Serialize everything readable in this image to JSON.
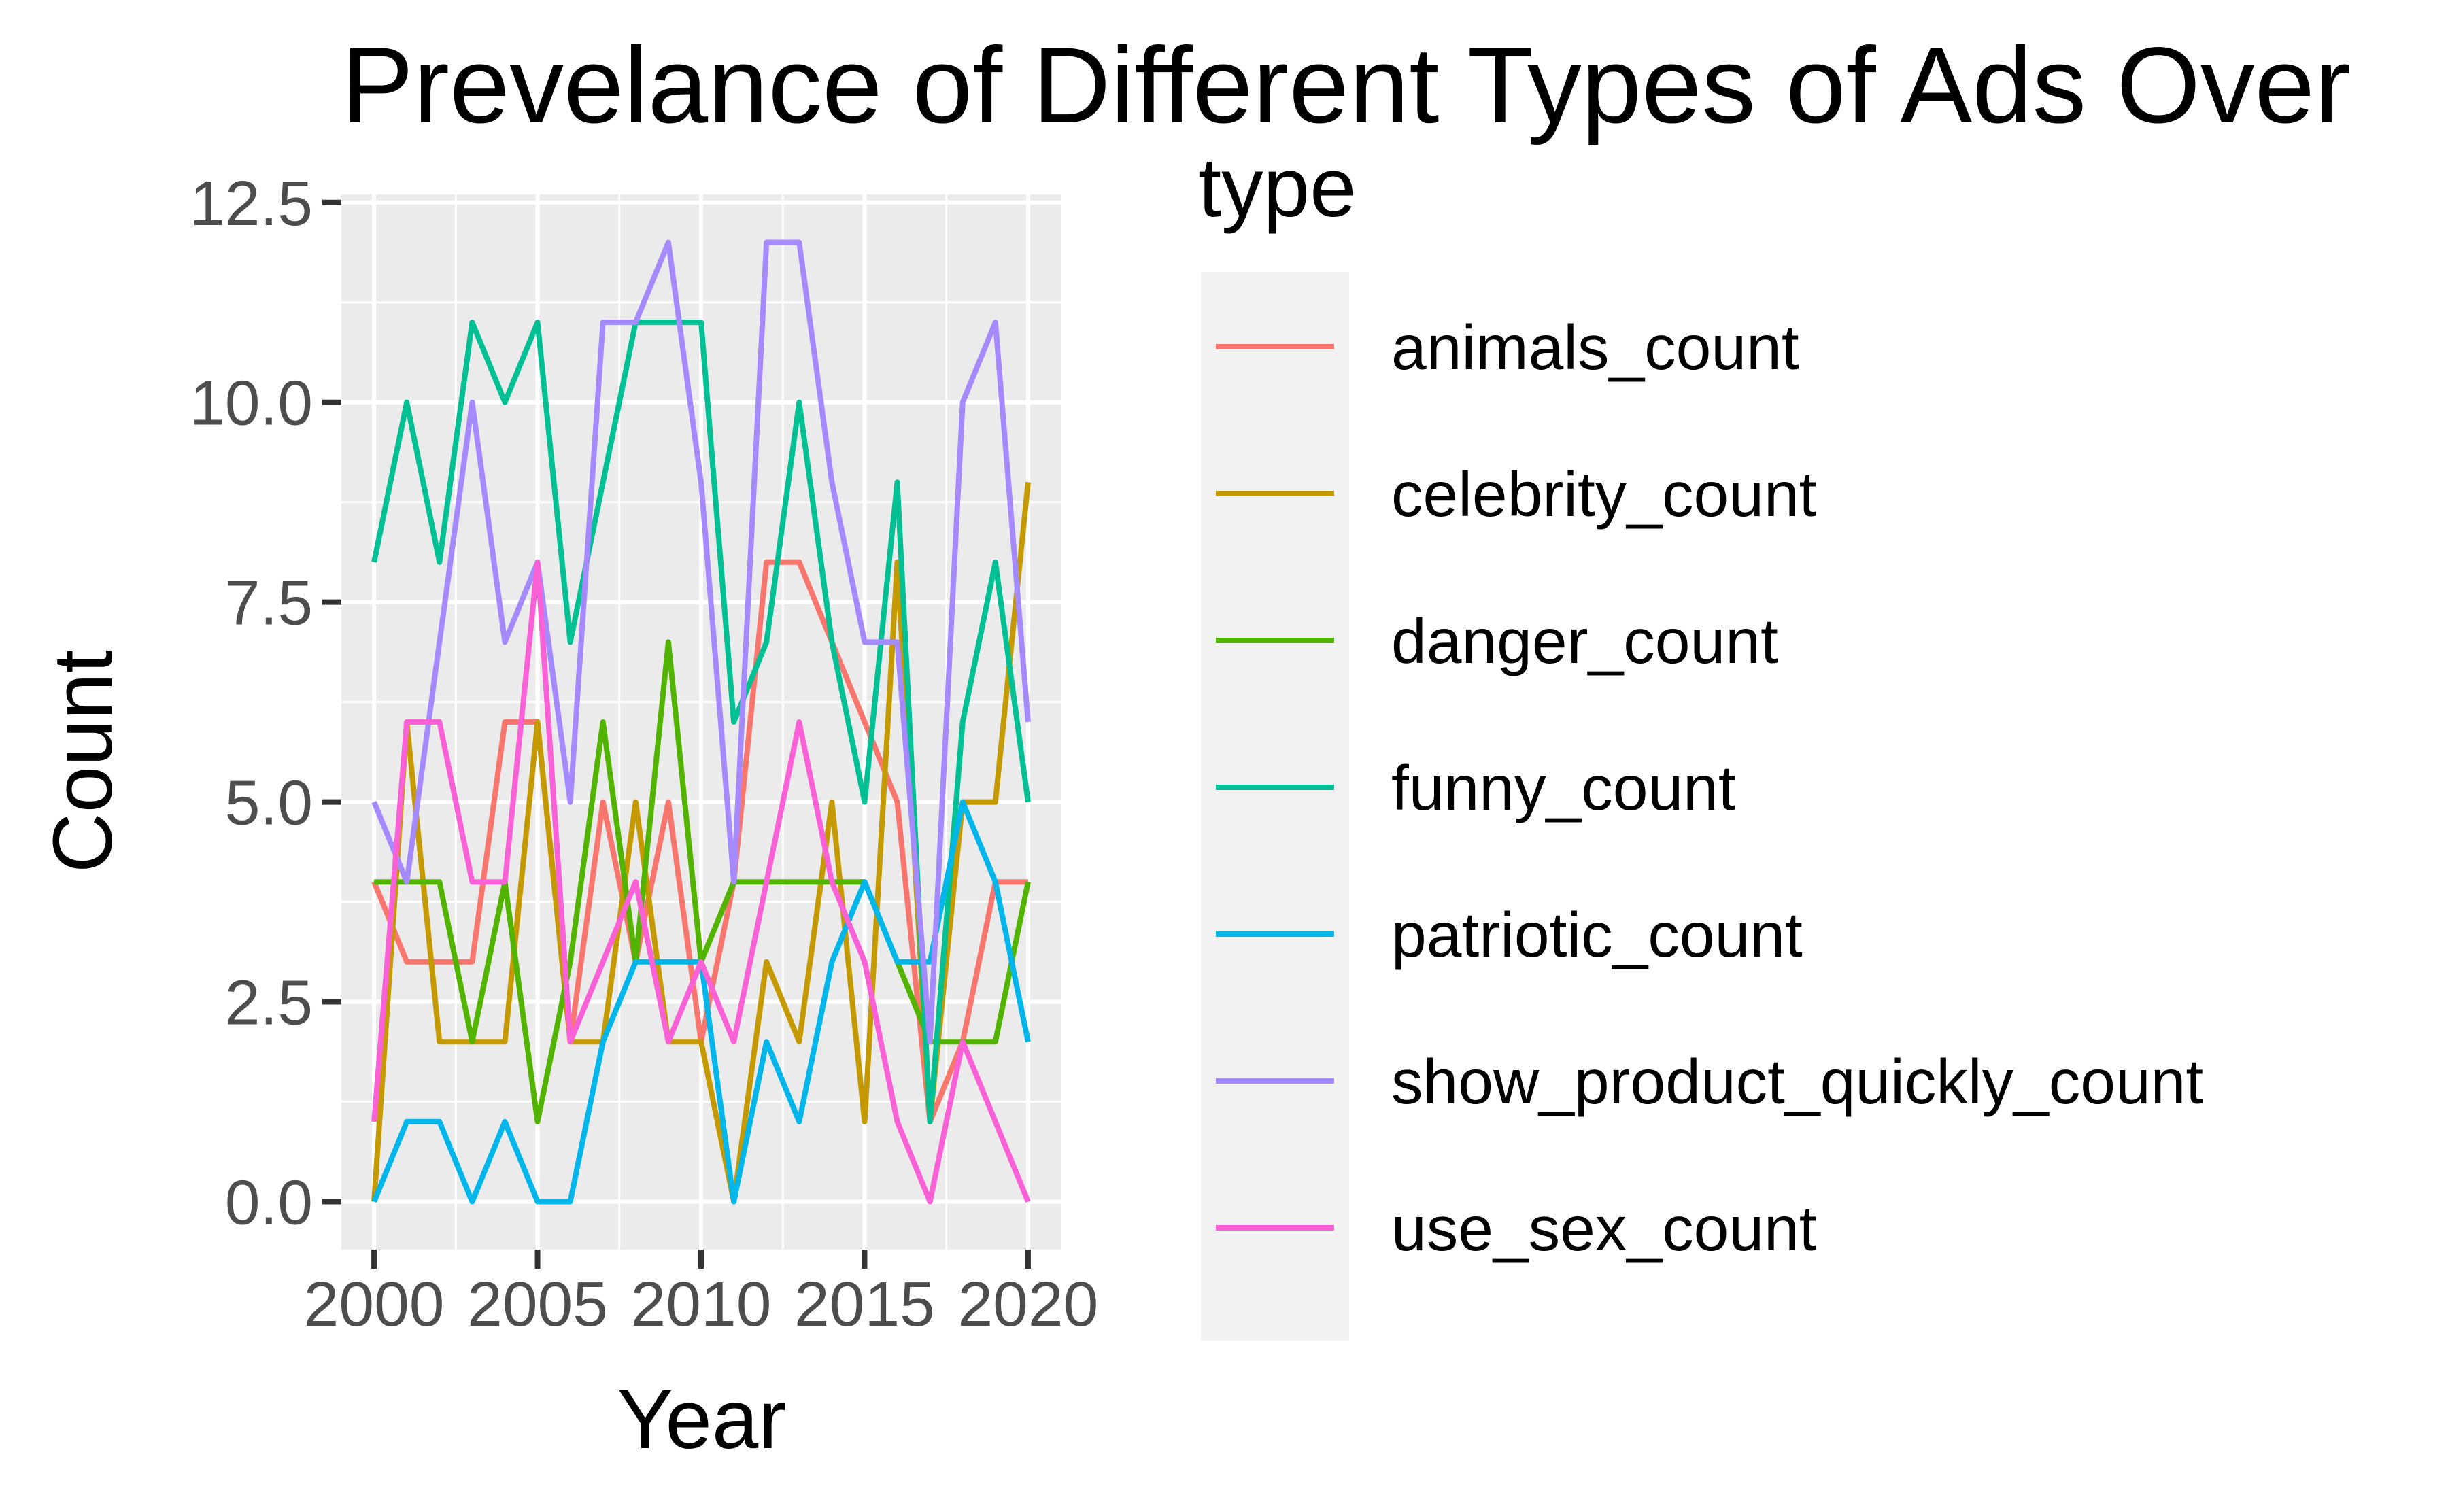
{
  "chart_data": {
    "type": "line",
    "title": "Prevelance of Different Types of Ads Over",
    "xlabel": "Year",
    "ylabel": "Count",
    "xlim": [
      1999,
      2021
    ],
    "ylim": [
      -0.6,
      12.6
    ],
    "x_ticks": [
      2000,
      2005,
      2010,
      2015,
      2020
    ],
    "y_ticks": [
      0.0,
      2.5,
      5.0,
      7.5,
      10.0,
      12.5
    ],
    "y_tick_labels": [
      "0.0",
      "2.5",
      "5.0",
      "7.5",
      "10.0",
      "12.5"
    ],
    "grid": true,
    "legend": {
      "title": "type",
      "placement": "right"
    },
    "x": [
      2000,
      2001,
      2002,
      2003,
      2004,
      2005,
      2006,
      2007,
      2008,
      2009,
      2010,
      2011,
      2012,
      2013,
      2014,
      2015,
      2016,
      2017,
      2018,
      2019,
      2020
    ],
    "series": [
      {
        "name": "animals_count",
        "color": "#F8766D",
        "values": [
          4,
          3,
          3,
          3,
          6,
          6,
          2,
          5,
          3,
          5,
          2,
          4,
          8,
          8,
          7,
          6,
          5,
          1,
          2,
          4,
          4
        ]
      },
      {
        "name": "celebrity_count",
        "color": "#C49A00",
        "values": [
          0,
          6,
          2,
          2,
          2,
          6,
          2,
          2,
          5,
          2,
          2,
          0,
          3,
          2,
          5,
          1,
          8,
          1,
          5,
          5,
          9
        ]
      },
      {
        "name": "danger_count",
        "color": "#53B400",
        "values": [
          4,
          4,
          4,
          2,
          4,
          1,
          3,
          6,
          3,
          7,
          3,
          4,
          4,
          4,
          4,
          4,
          3,
          2,
          2,
          2,
          4
        ]
      },
      {
        "name": "funny_count",
        "color": "#00C094",
        "values": [
          8,
          10,
          8,
          11,
          10,
          11,
          7,
          9,
          11,
          11,
          11,
          6,
          7,
          10,
          7,
          5,
          9,
          1,
          6,
          8,
          5
        ]
      },
      {
        "name": "patriotic_count",
        "color": "#00B6EB",
        "values": [
          0,
          1,
          1,
          0,
          1,
          0,
          0,
          2,
          3,
          3,
          3,
          0,
          2,
          1,
          3,
          4,
          3,
          3,
          5,
          4,
          2
        ]
      },
      {
        "name": "show_product_quickly_count",
        "color": "#A58AFF",
        "values": [
          5,
          4,
          7,
          10,
          7,
          8,
          5,
          11,
          11,
          12,
          9,
          4,
          12,
          12,
          9,
          7,
          7,
          2,
          10,
          11,
          6
        ]
      },
      {
        "name": "use_sex_count",
        "color": "#FB61D7",
        "values": [
          1,
          6,
          6,
          4,
          4,
          8,
          2,
          3,
          4,
          2,
          3,
          2,
          4,
          6,
          4,
          3,
          1,
          0,
          2,
          1,
          0
        ]
      }
    ]
  }
}
